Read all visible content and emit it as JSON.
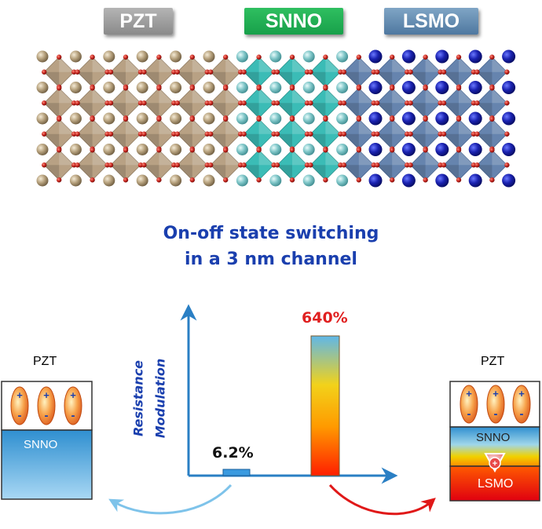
{
  "labels": {
    "pzt": "PZT",
    "snno": "SNNO",
    "lsmo": "LSMO"
  },
  "title": {
    "line1": "On-off state switching",
    "line2": "in a 3 nm channel"
  },
  "chart": {
    "ylabel_line1": "Resistance",
    "ylabel_line2": "Modulation",
    "low_label": "6.2%",
    "high_label": "640%",
    "low_value": 6.2,
    "high_value": 640
  },
  "devices": {
    "left": {
      "top_label": "PZT",
      "layer_label": "SNNO"
    },
    "right": {
      "top_label": "PZT",
      "layer1_label": "SNNO",
      "layer2_label": "LSMO"
    }
  },
  "colors": {
    "pzt_octahedra": "#b29a7a",
    "snno_octahedra": "#2bb7b0",
    "lsmo_octahedra": "#5a7aa8",
    "oxygen": "#c0201a",
    "axis": "#2a7fc4",
    "title": "#1a3fae"
  }
}
